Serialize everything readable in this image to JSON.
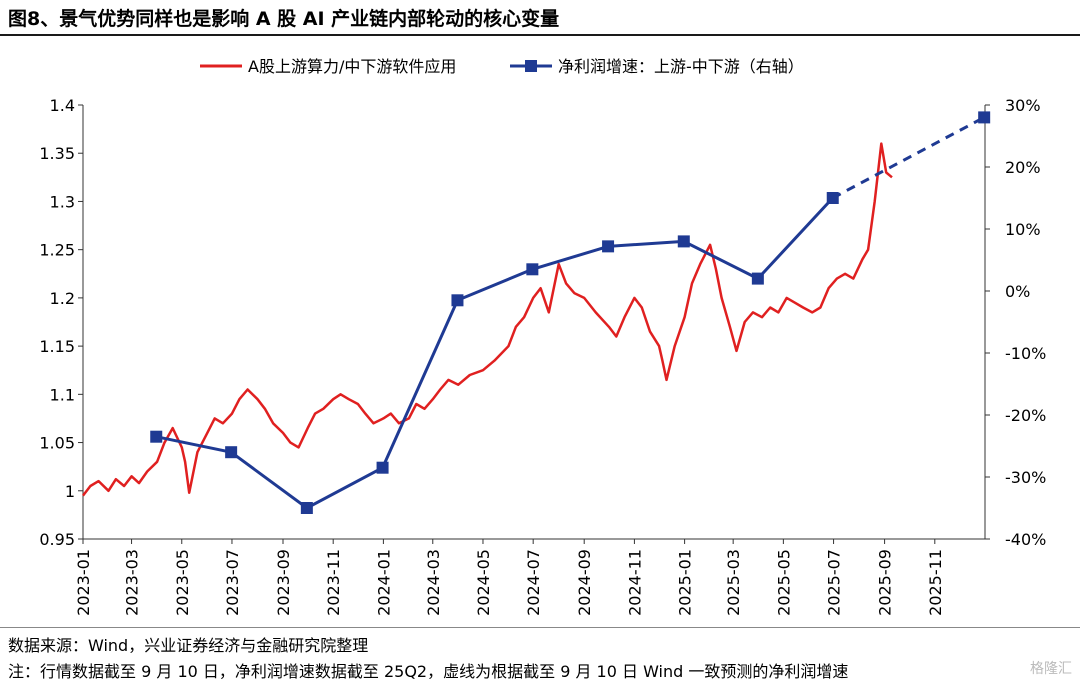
{
  "title": "图8、景气优势同样也是影响 A 股 AI 产业链内部轮动的核心变量",
  "footer": {
    "source": "数据来源：Wind，兴业证券经济与金融研究院整理",
    "note": "注：行情数据截至 9 月 10 日，净利润增速数据截至 25Q2，虚线为根据截至 9 月 10 日 Wind 一致预测的净利润增速",
    "watermark": "格隆汇"
  },
  "colors": {
    "red": "#e02020",
    "blue": "#1f3a93"
  },
  "chart_data": {
    "type": "line",
    "legend_position": "top",
    "grid": false,
    "x_ticks": [
      "2023-01",
      "2023-03",
      "2023-05",
      "2023-07",
      "2023-09",
      "2023-11",
      "2024-01",
      "2024-03",
      "2024-05",
      "2024-07",
      "2024-09",
      "2024-11",
      "2025-01",
      "2025-03",
      "2025-05",
      "2025-07",
      "2025-09",
      "2025-11"
    ],
    "x_range": [
      "2023-01-01",
      "2026-01-01"
    ],
    "y_left": {
      "ticks": [
        "0.95",
        "1",
        "1.05",
        "1.1",
        "1.15",
        "1.2",
        "1.25",
        "1.3",
        "1.35",
        "1.4"
      ],
      "ylim": [
        0.95,
        1.4
      ]
    },
    "y_right": {
      "ticks": [
        "-40%",
        "-30%",
        "-20%",
        "-10%",
        "0%",
        "10%",
        "20%",
        "30%"
      ],
      "ylim": [
        -40,
        30
      ]
    },
    "series": [
      {
        "name": "A股上游算力/中下游软件应用",
        "axis": "left",
        "color": "#e02020",
        "points": [
          [
            "2023-01-01",
            0.995
          ],
          [
            "2023-01-10",
            1.005
          ],
          [
            "2023-01-20",
            1.01
          ],
          [
            "2023-02-01",
            1.0
          ],
          [
            "2023-02-10",
            1.012
          ],
          [
            "2023-02-20",
            1.005
          ],
          [
            "2023-03-01",
            1.015
          ],
          [
            "2023-03-10",
            1.008
          ],
          [
            "2023-03-20",
            1.02
          ],
          [
            "2023-04-01",
            1.03
          ],
          [
            "2023-04-10",
            1.05
          ],
          [
            "2023-04-20",
            1.065
          ],
          [
            "2023-05-01",
            1.045
          ],
          [
            "2023-05-05",
            1.03
          ],
          [
            "2023-05-10",
            0.998
          ],
          [
            "2023-05-20",
            1.04
          ],
          [
            "2023-06-01",
            1.06
          ],
          [
            "2023-06-10",
            1.075
          ],
          [
            "2023-06-20",
            1.07
          ],
          [
            "2023-07-01",
            1.08
          ],
          [
            "2023-07-10",
            1.095
          ],
          [
            "2023-07-20",
            1.105
          ],
          [
            "2023-08-01",
            1.095
          ],
          [
            "2023-08-10",
            1.085
          ],
          [
            "2023-08-20",
            1.07
          ],
          [
            "2023-09-01",
            1.06
          ],
          [
            "2023-09-10",
            1.05
          ],
          [
            "2023-09-20",
            1.045
          ],
          [
            "2023-10-01",
            1.065
          ],
          [
            "2023-10-10",
            1.08
          ],
          [
            "2023-10-20",
            1.085
          ],
          [
            "2023-11-01",
            1.095
          ],
          [
            "2023-11-10",
            1.1
          ],
          [
            "2023-11-20",
            1.095
          ],
          [
            "2023-12-01",
            1.09
          ],
          [
            "2023-12-10",
            1.08
          ],
          [
            "2023-12-20",
            1.07
          ],
          [
            "2024-01-01",
            1.075
          ],
          [
            "2024-01-10",
            1.08
          ],
          [
            "2024-01-20",
            1.07
          ],
          [
            "2024-02-01",
            1.075
          ],
          [
            "2024-02-10",
            1.09
          ],
          [
            "2024-02-20",
            1.085
          ],
          [
            "2024-03-01",
            1.095
          ],
          [
            "2024-03-10",
            1.105
          ],
          [
            "2024-03-20",
            1.115
          ],
          [
            "2024-04-01",
            1.11
          ],
          [
            "2024-04-15",
            1.12
          ],
          [
            "2024-05-01",
            1.125
          ],
          [
            "2024-05-15",
            1.135
          ],
          [
            "2024-06-01",
            1.15
          ],
          [
            "2024-06-10",
            1.17
          ],
          [
            "2024-06-20",
            1.18
          ],
          [
            "2024-07-01",
            1.2
          ],
          [
            "2024-07-10",
            1.21
          ],
          [
            "2024-07-20",
            1.185
          ],
          [
            "2024-08-01",
            1.235
          ],
          [
            "2024-08-10",
            1.215
          ],
          [
            "2024-08-20",
            1.205
          ],
          [
            "2024-09-01",
            1.2
          ],
          [
            "2024-09-15",
            1.185
          ],
          [
            "2024-10-01",
            1.17
          ],
          [
            "2024-10-10",
            1.16
          ],
          [
            "2024-10-20",
            1.18
          ],
          [
            "2024-11-01",
            1.2
          ],
          [
            "2024-11-10",
            1.19
          ],
          [
            "2024-11-20",
            1.165
          ],
          [
            "2024-12-01",
            1.15
          ],
          [
            "2024-12-05",
            1.135
          ],
          [
            "2024-12-10",
            1.115
          ],
          [
            "2024-12-20",
            1.15
          ],
          [
            "2025-01-01",
            1.18
          ],
          [
            "2025-01-10",
            1.215
          ],
          [
            "2025-01-20",
            1.235
          ],
          [
            "2025-02-01",
            1.255
          ],
          [
            "2025-02-08",
            1.23
          ],
          [
            "2025-02-15",
            1.2
          ],
          [
            "2025-02-25",
            1.17
          ],
          [
            "2025-03-05",
            1.145
          ],
          [
            "2025-03-15",
            1.175
          ],
          [
            "2025-03-25",
            1.185
          ],
          [
            "2025-04-05",
            1.18
          ],
          [
            "2025-04-15",
            1.19
          ],
          [
            "2025-04-25",
            1.185
          ],
          [
            "2025-05-05",
            1.2
          ],
          [
            "2025-05-15",
            1.195
          ],
          [
            "2025-05-25",
            1.19
          ],
          [
            "2025-06-05",
            1.185
          ],
          [
            "2025-06-15",
            1.19
          ],
          [
            "2025-06-25",
            1.21
          ],
          [
            "2025-07-05",
            1.22
          ],
          [
            "2025-07-15",
            1.225
          ],
          [
            "2025-07-25",
            1.22
          ],
          [
            "2025-08-05",
            1.24
          ],
          [
            "2025-08-12",
            1.25
          ],
          [
            "2025-08-20",
            1.3
          ],
          [
            "2025-08-28",
            1.36
          ],
          [
            "2025-09-03",
            1.33
          ],
          [
            "2025-09-10",
            1.325
          ]
        ]
      },
      {
        "name": "净利润增速：上游-中下游（右轴）",
        "axis": "right",
        "color": "#1f3a93",
        "points": [
          [
            "2023-03-31",
            -23.5
          ],
          [
            "2023-06-30",
            -26
          ],
          [
            "2023-09-30",
            -35
          ],
          [
            "2023-12-31",
            -28.5
          ],
          [
            "2024-03-31",
            -1.5
          ],
          [
            "2024-06-30",
            3.5
          ],
          [
            "2024-09-30",
            7.2
          ],
          [
            "2024-12-31",
            8
          ],
          [
            "2025-03-31",
            2
          ],
          [
            "2025-06-30",
            15
          ]
        ],
        "forecast_points": [
          [
            "2025-06-30",
            15
          ],
          [
            "2025-12-31",
            28
          ]
        ]
      }
    ]
  }
}
